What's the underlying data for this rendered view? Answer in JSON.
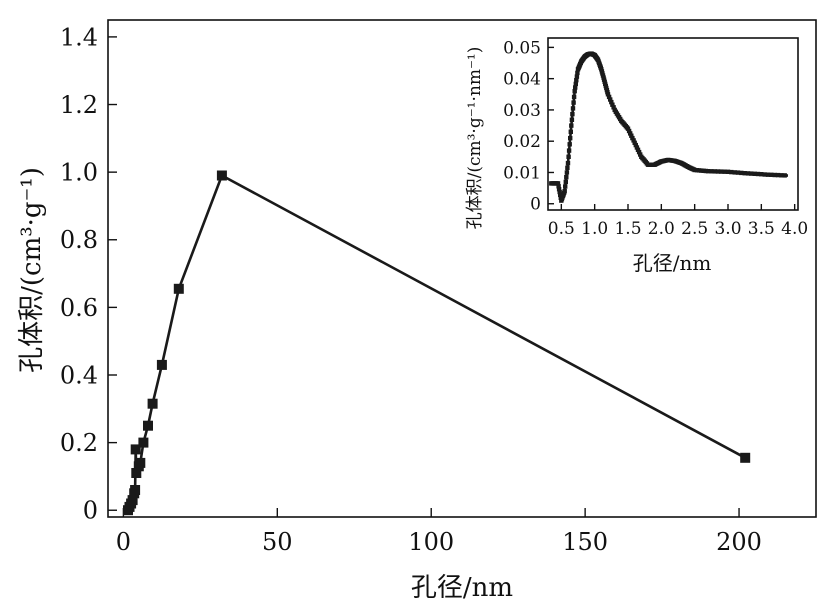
{
  "chart_data": [
    {
      "type": "line",
      "xlabel": "孔径/nm",
      "ylabel": "孔体积/(cm³·g⁻¹)",
      "xlim": [
        -5,
        225
      ],
      "ylim": [
        -0.02,
        1.45
      ],
      "xticks": [
        0,
        50,
        100,
        150,
        200
      ],
      "yticks": [
        0,
        0.2,
        0.4,
        0.6,
        0.8,
        1.0,
        1.2,
        1.4
      ],
      "xtick_labels": [
        "0",
        "50",
        "100",
        "150",
        "200"
      ],
      "ytick_labels": [
        "0",
        "0.2",
        "0.4",
        "0.6",
        "0.8",
        "1.0",
        "1.2",
        "1.4"
      ],
      "grid": false,
      "series": [
        {
          "markers": "square",
          "x": [
            1.5,
            2.0,
            2.5,
            3.0,
            3.5,
            3.8,
            4.0,
            4.2,
            5.0,
            5.5,
            6.5,
            8.0,
            9.5,
            12.5,
            18.0,
            32.0,
            202.0
          ],
          "y": [
            0.0,
            0.01,
            0.02,
            0.03,
            0.05,
            0.06,
            0.18,
            0.11,
            0.13,
            0.14,
            0.2,
            0.25,
            0.315,
            0.43,
            0.655,
            0.99,
            0.155
          ]
        }
      ]
    },
    {
      "type": "line",
      "xlabel": "孔径/nm",
      "ylabel": "孔体积/(cm³·g⁻¹·nm⁻¹)",
      "xlim": [
        0.3,
        4.05
      ],
      "ylim": [
        -0.002,
        0.053
      ],
      "xticks": [
        0.5,
        1.0,
        1.5,
        2.0,
        2.5,
        3.0,
        3.5,
        4.0
      ],
      "yticks": [
        0,
        0.01,
        0.02,
        0.03,
        0.04,
        0.05
      ],
      "xtick_labels": [
        "0.5",
        "1.0",
        "1.5",
        "2.0",
        "2.5",
        "3.0",
        "3.5",
        "4.0"
      ],
      "ytick_labels": [
        "0",
        "0.01",
        "0.02",
        "0.03",
        "0.04",
        "0.05"
      ],
      "grid": false,
      "series": [
        {
          "markers": "dense-dots",
          "x": [
            0.35,
            0.45,
            0.5,
            0.55,
            0.6,
            0.65,
            0.7,
            0.75,
            0.8,
            0.85,
            0.9,
            0.95,
            1.0,
            1.05,
            1.1,
            1.15,
            1.2,
            1.3,
            1.4,
            1.5,
            1.6,
            1.7,
            1.8,
            1.9,
            2.0,
            2.1,
            2.2,
            2.3,
            2.4,
            2.5,
            2.7,
            3.0,
            3.3,
            3.6,
            3.9
          ],
          "y": [
            0.0065,
            0.0065,
            0.001,
            0.004,
            0.013,
            0.025,
            0.036,
            0.043,
            0.0455,
            0.047,
            0.0478,
            0.048,
            0.0475,
            0.046,
            0.043,
            0.039,
            0.035,
            0.03,
            0.0265,
            0.024,
            0.0195,
            0.015,
            0.0125,
            0.0125,
            0.0135,
            0.014,
            0.0137,
            0.013,
            0.0118,
            0.0108,
            0.0104,
            0.0102,
            0.0097,
            0.0093,
            0.009
          ]
        }
      ]
    }
  ]
}
